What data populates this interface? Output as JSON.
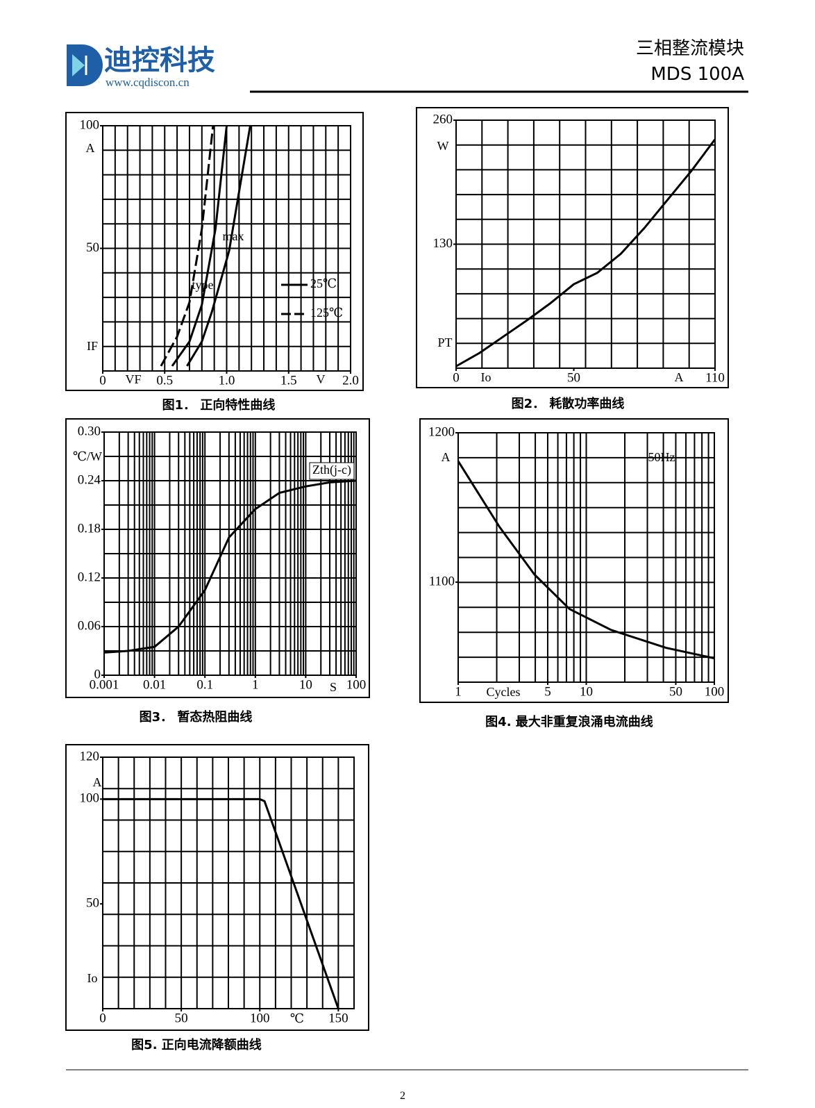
{
  "header": {
    "company": "迪控科技",
    "website": "www.cqdiscon.cn",
    "product": "三相整流模块",
    "model": "MDS 100A"
  },
  "chart_data": [
    {
      "type": "line",
      "title": "图1．  正向特性曲线",
      "xlim": [
        0,
        2
      ],
      "xticks": [
        0,
        0.5,
        {
          "value": 1,
          "label": "1.0"
        },
        1.5,
        {
          "value": 2,
          "label": "2.0"
        }
      ],
      "ylim": [
        0,
        100
      ],
      "yticks": [
        50,
        100
      ],
      "grid": true,
      "xgrid_divisions": 20,
      "ygrid_divisions": 10,
      "y_unit": "A",
      "y_symbol": "IF",
      "x_symbol": "VF",
      "x_unit": "V",
      "annotations": [
        "type",
        "max"
      ],
      "legend": [
        {
          "label": "25℃",
          "dash": false
        },
        {
          "label": "125℃",
          "dash": true
        }
      ],
      "series": [
        {
          "color": "#000000",
          "dash": true,
          "x": [
            0.47,
            0.6,
            0.7,
            0.8,
            0.89
          ],
          "values": [
            2,
            14,
            28,
            58,
            100
          ]
        },
        {
          "color": "#000000",
          "dash": false,
          "x": [
            0.56,
            0.7,
            0.8,
            0.91,
            1.0
          ],
          "values": [
            2,
            12,
            27,
            58,
            100
          ]
        },
        {
          "color": "#000000",
          "dash": false,
          "x": [
            0.68,
            0.8,
            0.88,
            1.02,
            1.19
          ],
          "values": [
            2,
            12,
            24,
            49,
            100
          ]
        }
      ]
    },
    {
      "type": "line",
      "title": "图2．  耗散功率曲线",
      "xlim": [
        0,
        110
      ],
      "xticks": [
        0,
        50,
        110
      ],
      "ylim": [
        0,
        260
      ],
      "yticks": [
        130,
        260
      ],
      "grid": true,
      "xgrid_divisions": 10,
      "ygrid_divisions": 10,
      "y_unit": "W",
      "y_symbol": "PT",
      "x_symbol": "Io",
      "x_unit": "A",
      "series": [
        {
          "color": "#000000",
          "dash": false,
          "x": [
            0,
            10,
            20,
            30,
            40,
            50,
            60,
            70,
            80,
            90,
            100,
            110
          ],
          "values": [
            2,
            16,
            33,
            50,
            68,
            88,
            100,
            120,
            147,
            177,
            207,
            240
          ]
        }
      ]
    },
    {
      "type": "line",
      "title": "图3．  暂态热阻曲线",
      "xlog": true,
      "xlim": [
        0.001,
        100
      ],
      "xticks": [
        0.001,
        0.01,
        0.1,
        1,
        10,
        100
      ],
      "ylim": [
        0,
        0.3
      ],
      "yticks": [
        0,
        0.06,
        0.12,
        0.18,
        0.24,
        {
          "value": 0.3,
          "label": "0.30"
        }
      ],
      "grid": true,
      "ygrid_divisions": 10,
      "y_unit": "℃/W",
      "x_unit": "S",
      "annotations": [
        "Zth(j-c)"
      ],
      "series": [
        {
          "color": "#000000",
          "dash": false,
          "x": [
            0.001,
            0.003,
            0.01,
            0.03,
            0.1,
            0.3,
            1,
            3,
            10,
            30,
            100
          ],
          "values": [
            0.028,
            0.03,
            0.035,
            0.06,
            0.105,
            0.17,
            0.205,
            0.225,
            0.233,
            0.238,
            0.24
          ]
        }
      ]
    },
    {
      "type": "line",
      "title": "图4.   最大非重复浪涌电流曲线",
      "xlog": true,
      "xlim": [
        1,
        100
      ],
      "xticks": [
        1,
        5,
        10,
        50,
        100
      ],
      "ylim": [
        1033,
        1200
      ],
      "yticks": [
        1100,
        1200
      ],
      "grid": true,
      "ygrid_divisions": 10,
      "y_unit": "A",
      "x_unit": "Cycles",
      "annotations": [
        "50Hz"
      ],
      "series": [
        {
          "color": "#000000",
          "dash": false,
          "x": [
            1,
            2.1,
            3.95,
            7.4,
            15.6,
            42,
            100
          ],
          "values": [
            1181,
            1137,
            1105,
            1082,
            1068,
            1056,
            1049
          ]
        }
      ]
    },
    {
      "type": "line",
      "title": "图5.   正向电流降额曲线",
      "xlim": [
        0,
        160
      ],
      "xticks": [
        0,
        50,
        100,
        150
      ],
      "ylim": [
        0,
        120
      ],
      "yticks": [
        50,
        100,
        120
      ],
      "grid": true,
      "xgrid_divisions": 16,
      "ygrid_divisions": 8,
      "y_unit": "A",
      "y_symbol": "Io",
      "x_unit": "℃",
      "series": [
        {
          "color": "#000000",
          "dash": false,
          "x": [
            0,
            100,
            103,
            150
          ],
          "values": [
            100,
            100,
            99,
            0
          ]
        }
      ]
    }
  ],
  "footer": {
    "page": "2"
  }
}
